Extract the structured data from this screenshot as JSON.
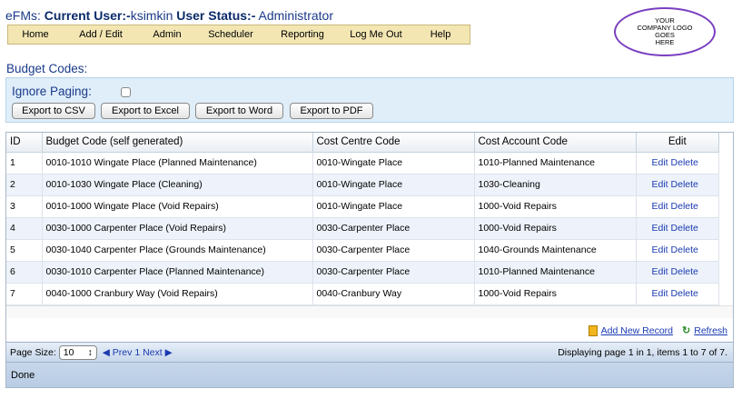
{
  "header": {
    "app": "eFMs:",
    "user_label": "Current User:-",
    "user": "ksimkin",
    "status_label": "User Status:-",
    "status": "Administrator"
  },
  "nav": [
    "Home",
    "Add / Edit",
    "Admin",
    "Scheduler",
    "Reporting",
    "Log Me Out",
    "Help"
  ],
  "logo": [
    "YOUR",
    "COMPANY LOGO",
    "GOES",
    "HERE"
  ],
  "section_title": "Budget Codes:",
  "toolbar": {
    "ignore_paging": "Ignore Paging:",
    "buttons": [
      "Export to CSV",
      "Export to Excel",
      "Export to Word",
      "Export to PDF"
    ]
  },
  "table": {
    "columns": [
      "ID",
      "Budget Code (self generated)",
      "Cost Centre Code",
      "Cost Account Code",
      "Edit"
    ],
    "rows": [
      [
        "1",
        "0010-1010 Wingate Place (Planned Maintenance)",
        "0010-Wingate Place",
        "1010-Planned Maintenance"
      ],
      [
        "2",
        "0010-1030 Wingate Place (Cleaning)",
        "0010-Wingate Place",
        "1030-Cleaning"
      ],
      [
        "3",
        "0010-1000 Wingate Place (Void Repairs)",
        "0010-Wingate Place",
        "1000-Void Repairs"
      ],
      [
        "4",
        "0030-1000 Carpenter Place (Void Repairs)",
        "0030-Carpenter Place",
        "1000-Void Repairs"
      ],
      [
        "5",
        "0030-1040 Carpenter Place (Grounds Maintenance)",
        "0030-Carpenter Place",
        "1040-Grounds Maintenance"
      ],
      [
        "6",
        "0030-1010 Carpenter Place (Planned Maintenance)",
        "0030-Carpenter Place",
        "1010-Planned Maintenance"
      ],
      [
        "7",
        "0040-1000 Cranbury Way (Void Repairs)",
        "0040-Cranbury Way",
        "1000-Void Repairs"
      ]
    ],
    "edit_label": "Edit",
    "delete_label": "Delete"
  },
  "actions": {
    "add_new": "Add New Record",
    "refresh": "Refresh"
  },
  "pager": {
    "page_size_label": "Page Size:",
    "page_size": "10",
    "prev": "Prev",
    "page": "1",
    "next": "Next",
    "info": "Displaying page 1 in 1, items 1 to 7 of 7."
  },
  "status_bar": "Done"
}
